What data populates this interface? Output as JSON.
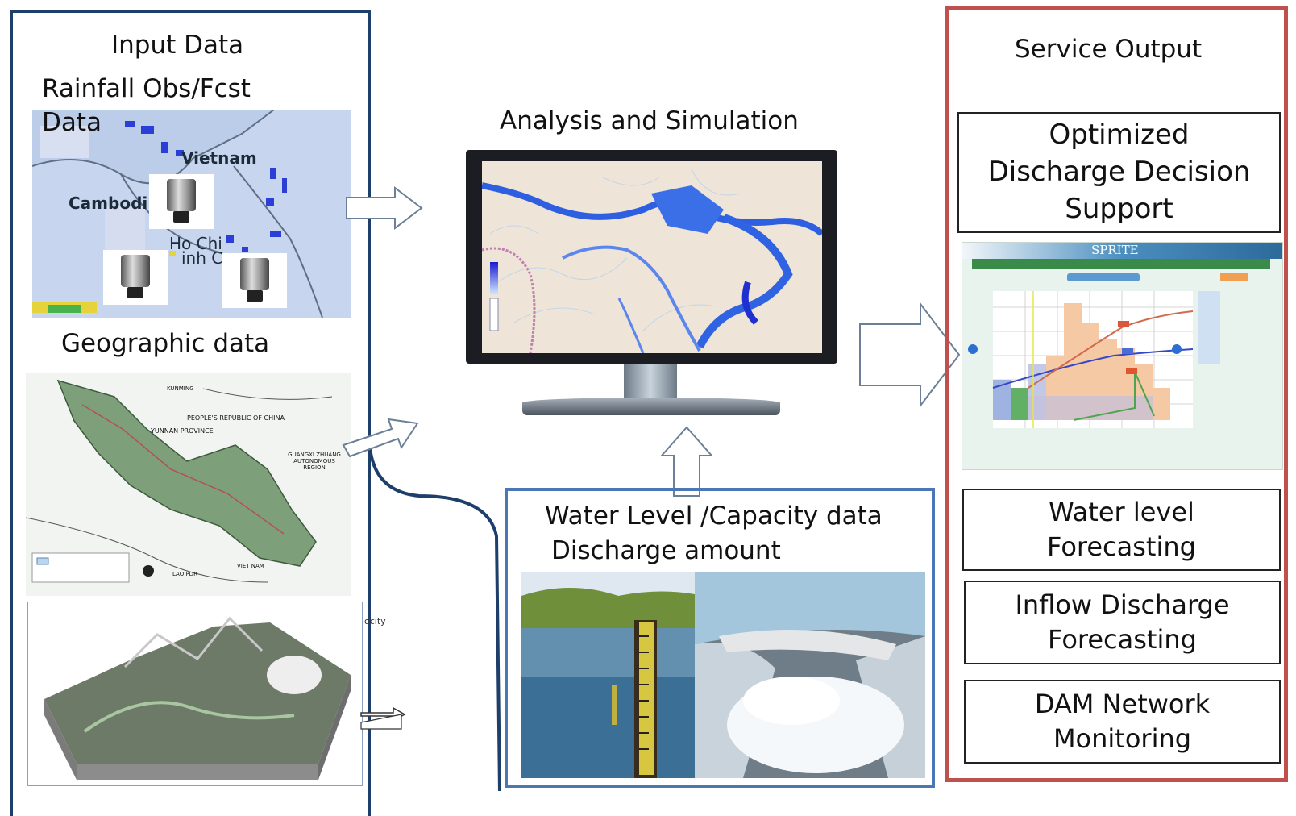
{
  "input": {
    "title": "Input Data",
    "rainfall_title_line1": "Rainfall Obs/Fcst",
    "rainfall_title_line2": "Data",
    "rain_map_labels": {
      "vietnam": "Vietnam",
      "cambodia": "Cambodi",
      "hochi": "Ho Chi",
      "minh": "inh C"
    },
    "geo_title": "Geographic data",
    "geo_map_labels": {
      "prc": "PEOPLE'S REPUBLIC OF CHINA",
      "yunnan": "YUNNAN PROVINCE",
      "guangxi": "GUANGXI ZHUANG AUTONOMOUS REGION",
      "vietnam": "VIET NAM",
      "laos": "LAO PDR",
      "kunming": "KUNMING"
    },
    "terrain_label": "ocity"
  },
  "analysis": {
    "title": "Analysis and Simulation"
  },
  "water": {
    "title_line1": "Water Level /Capacity data",
    "title_line2": "Discharge amount"
  },
  "output": {
    "title": "Service Output",
    "optimized_line1": "Optimized",
    "optimized_line2": "Discharge Decision",
    "optimized_line3": "Support",
    "sprite_title": "SPRITE",
    "water_level_line1": "Water level",
    "water_level_line2": "Forecasting",
    "inflow_line1": "Inflow Discharge",
    "inflow_line2": "Forecasting",
    "dam_line1": "DAM Network",
    "dam_line2": "Monitoring"
  },
  "colors": {
    "left_panel": "#1f3f6b",
    "right_panel": "#c0504d",
    "water_panel": "#4a78b4"
  }
}
